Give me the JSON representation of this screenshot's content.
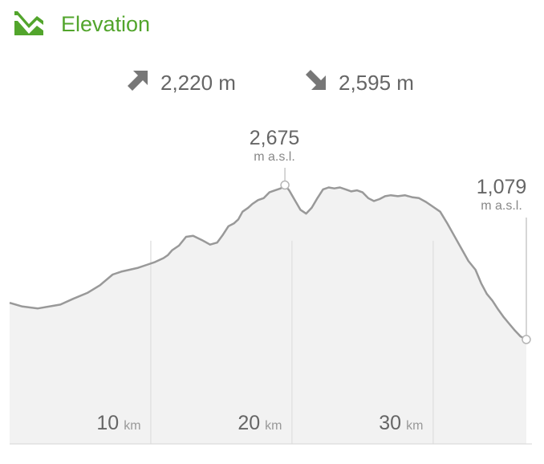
{
  "header": {
    "title": "Elevation",
    "icon": "mountain-icon",
    "accent": "#52a52c"
  },
  "stats": {
    "ascent": {
      "icon": "arrow-up-right-icon",
      "value": "2,220 m"
    },
    "descent": {
      "icon": "arrow-down-right-icon",
      "value": "2,595 m"
    }
  },
  "peaks": {
    "max": {
      "value": "2,675",
      "unit": "m a.s.l."
    },
    "end": {
      "value": "1,079",
      "unit": "m a.s.l."
    }
  },
  "chart_data": {
    "type": "area",
    "xlabel": "",
    "ylabel": "",
    "xlim": [
      0,
      37
    ],
    "x_ticks": [
      {
        "value": 10,
        "num": "10",
        "unit": "km"
      },
      {
        "value": 20,
        "num": "20",
        "unit": "km"
      },
      {
        "value": 30,
        "num": "30",
        "unit": "km"
      }
    ],
    "ylim": [
      0,
      3600
    ],
    "unit": "m a.s.l.",
    "series": [
      {
        "x": [
          0,
          0.9,
          2.0,
          3.6,
          4.5,
          5.5,
          6.4,
          7.3,
          7.9,
          8.5,
          9.1,
          9.7,
          10.3,
          10.9,
          11.2,
          11.5,
          12.0,
          12.5,
          13.0,
          13.7,
          14.2,
          14.7,
          15.1,
          15.5,
          15.9,
          16.2,
          16.5,
          16.9,
          17.2,
          17.6,
          18.0,
          18.4,
          18.8,
          19.2,
          19.5,
          19.8,
          20.2,
          20.6,
          21.0,
          21.4,
          21.8,
          22.2,
          22.6,
          23.0,
          23.4,
          23.8,
          24.2,
          24.6,
          25.0,
          25.4,
          25.8,
          26.2,
          26.6,
          27.0,
          27.5,
          28.0,
          28.5,
          29.0,
          29.5,
          30.0,
          30.5,
          31.0,
          31.5,
          32.0,
          32.5,
          33.0,
          33.4,
          33.8,
          34.2,
          34.6,
          35.0,
          35.4,
          35.8,
          36.2,
          36.6
        ],
        "y": [
          1458,
          1420,
          1400,
          1440,
          1500,
          1560,
          1640,
          1750,
          1780,
          1800,
          1820,
          1850,
          1880,
          1920,
          1950,
          2000,
          2050,
          2140,
          2150,
          2100,
          2060,
          2080,
          2160,
          2250,
          2280,
          2320,
          2400,
          2440,
          2480,
          2520,
          2540,
          2600,
          2620,
          2640,
          2675,
          2620,
          2520,
          2420,
          2380,
          2440,
          2540,
          2630,
          2650,
          2640,
          2650,
          2630,
          2610,
          2620,
          2600,
          2540,
          2510,
          2530,
          2560,
          2570,
          2560,
          2570,
          2550,
          2540,
          2500,
          2450,
          2400,
          2280,
          2150,
          2020,
          1890,
          1800,
          1660,
          1550,
          1480,
          1390,
          1310,
          1240,
          1170,
          1110,
          1079
        ]
      }
    ],
    "max_point": {
      "x": 19.5,
      "y": 2675
    },
    "end_point": {
      "x": 36.6,
      "y": 1079
    },
    "grid": true,
    "colors": {
      "line": "#999999",
      "fill": "#f2f2f2",
      "vertical_grid": "#e2e2e2",
      "baseline": "#d6d6d6",
      "tick_number": "#666666",
      "tick_unit": "#999999"
    }
  }
}
